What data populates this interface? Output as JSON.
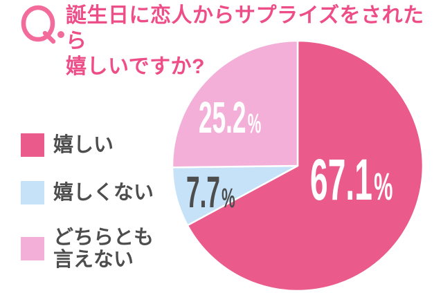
{
  "header": {
    "q_label": "Q.",
    "title_line1": "誕生日に恋人からサプライズをされたら",
    "title_line2": "嬉しいですか?",
    "title_color": "#EE4E87",
    "q_color": "#F26B9B"
  },
  "legend": {
    "text_color": "#4D4D4D",
    "items": [
      {
        "label": "嬉しい",
        "lines": [
          "嬉しい"
        ],
        "color": "#EA5B8B"
      },
      {
        "label": "嬉しくない",
        "lines": [
          "嬉しくない"
        ],
        "color": "#C5E2F8"
      },
      {
        "label": "どちらとも言えない",
        "lines": [
          "どちらとも",
          "言えない"
        ],
        "color": "#F3AFD8"
      }
    ]
  },
  "chart_data": {
    "type": "pie",
    "title": "誕生日に恋人からサプライズをされたら嬉しいですか?",
    "categories": [
      "嬉しい",
      "嬉しくない",
      "どちらとも言えない"
    ],
    "values": [
      67.1,
      7.7,
      25.2
    ],
    "unit": "%",
    "colors": [
      "#EA5B8B",
      "#C5E2F8",
      "#F3AFD8"
    ],
    "start_angle_deg": 0,
    "direction": "clockwise",
    "separator_color": "#FFFFFF",
    "legend_position": "left",
    "labels": [
      {
        "value": "67.1",
        "suffix": "%",
        "color": "#FFFFFF"
      },
      {
        "value": "7.7",
        "suffix": "%",
        "color": "#4D4D4D"
      },
      {
        "value": "25.2",
        "suffix": "%",
        "color": "#FFFFFF"
      }
    ]
  }
}
